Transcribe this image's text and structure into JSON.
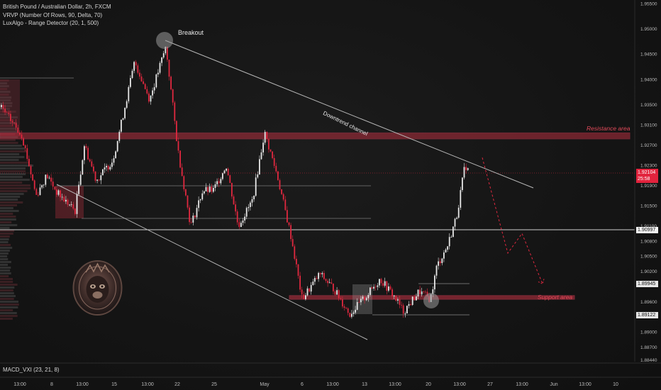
{
  "legend": {
    "symbol": "British Pound / Australian Dollar, 2h, FXCM",
    "indicator1": "VRVP (Number Of Rows, 90, Delta, 70)",
    "indicator2": "LuxAlgo - Range Detector (20, 1, 500)"
  },
  "macd_label": "MACD_VXI (23, 21, 8)",
  "annotations": {
    "breakout": "Breakout",
    "channel": "Downtrend channel",
    "resistance": "Resistance area",
    "support": "Support area"
  },
  "price_tags": {
    "live_price": "1.92104",
    "live_timer": "25:58",
    "level_a": "1.90997",
    "level_b": "1.89945",
    "level_c": "1.89122"
  },
  "colors": {
    "up": "#e8e8e8",
    "down": "#e0283f",
    "zone": "#d63447",
    "background": "#131313"
  },
  "chart_data": {
    "type": "candlestick",
    "title": "British Pound / Australian Dollar, 2h, FXCM",
    "y_ticks": [
      "1.95500",
      "1.95000",
      "1.94500",
      "1.94000",
      "1.93500",
      "1.93100",
      "1.92700",
      "1.92300",
      "1.91900",
      "1.91500",
      "1.91100",
      "1.90800",
      "1.90500",
      "1.90200",
      "1.89600",
      "1.89000",
      "1.88700",
      "1.88440"
    ],
    "x_ticks": [
      "13:00",
      "8",
      "13:00",
      "15",
      "13:00",
      "22",
      "25",
      "May",
      "6",
      "13:00",
      "13",
      "13:00",
      "20",
      "13:00",
      "27",
      "13:00",
      "Jun",
      "13:00",
      "10"
    ],
    "ylim": [
      1.8844,
      1.955
    ],
    "resistance_area": [
      1.9282,
      1.9294
    ],
    "support_area": [
      1.8966,
      1.8972
    ],
    "close_path": [
      {
        "x": 0,
        "y": 1.9345
      },
      {
        "x": 30,
        "y": 1.929
      },
      {
        "x": 50,
        "y": 1.917
      },
      {
        "x": 65,
        "y": 1.921
      },
      {
        "x": 80,
        "y": 1.9175
      },
      {
        "x": 105,
        "y": 1.914
      },
      {
        "x": 118,
        "y": 1.927
      },
      {
        "x": 135,
        "y": 1.92
      },
      {
        "x": 158,
        "y": 1.924
      },
      {
        "x": 168,
        "y": 1.93
      },
      {
        "x": 189,
        "y": 1.9435
      },
      {
        "x": 210,
        "y": 1.936
      },
      {
        "x": 233,
        "y": 1.9465
      },
      {
        "x": 250,
        "y": 1.926
      },
      {
        "x": 268,
        "y": 1.911
      },
      {
        "x": 285,
        "y": 1.918
      },
      {
        "x": 300,
        "y": 1.918
      },
      {
        "x": 318,
        "y": 1.923
      },
      {
        "x": 335,
        "y": 1.911
      },
      {
        "x": 355,
        "y": 1.916
      },
      {
        "x": 372,
        "y": 1.9295
      },
      {
        "x": 390,
        "y": 1.921
      },
      {
        "x": 410,
        "y": 1.9085
      },
      {
        "x": 425,
        "y": 1.8965
      },
      {
        "x": 450,
        "y": 1.9015
      },
      {
        "x": 470,
        "y": 1.8985
      },
      {
        "x": 492,
        "y": 1.8935
      },
      {
        "x": 515,
        "y": 1.897
      },
      {
        "x": 535,
        "y": 1.9005
      },
      {
        "x": 555,
        "y": 1.897
      },
      {
        "x": 568,
        "y": 1.894
      },
      {
        "x": 590,
        "y": 1.898
      },
      {
        "x": 606,
        "y": 1.8965
      },
      {
        "x": 615,
        "y": 1.903
      },
      {
        "x": 630,
        "y": 1.907
      },
      {
        "x": 643,
        "y": 1.913
      },
      {
        "x": 655,
        "y": 1.9232
      },
      {
        "x": 662,
        "y": 1.921
      }
    ],
    "projection_path": [
      {
        "x": 680,
        "y": 1.9245
      },
      {
        "x": 716,
        "y": 1.9056
      },
      {
        "x": 736,
        "y": 1.9095
      },
      {
        "x": 765,
        "y": 1.8995
      }
    ]
  }
}
